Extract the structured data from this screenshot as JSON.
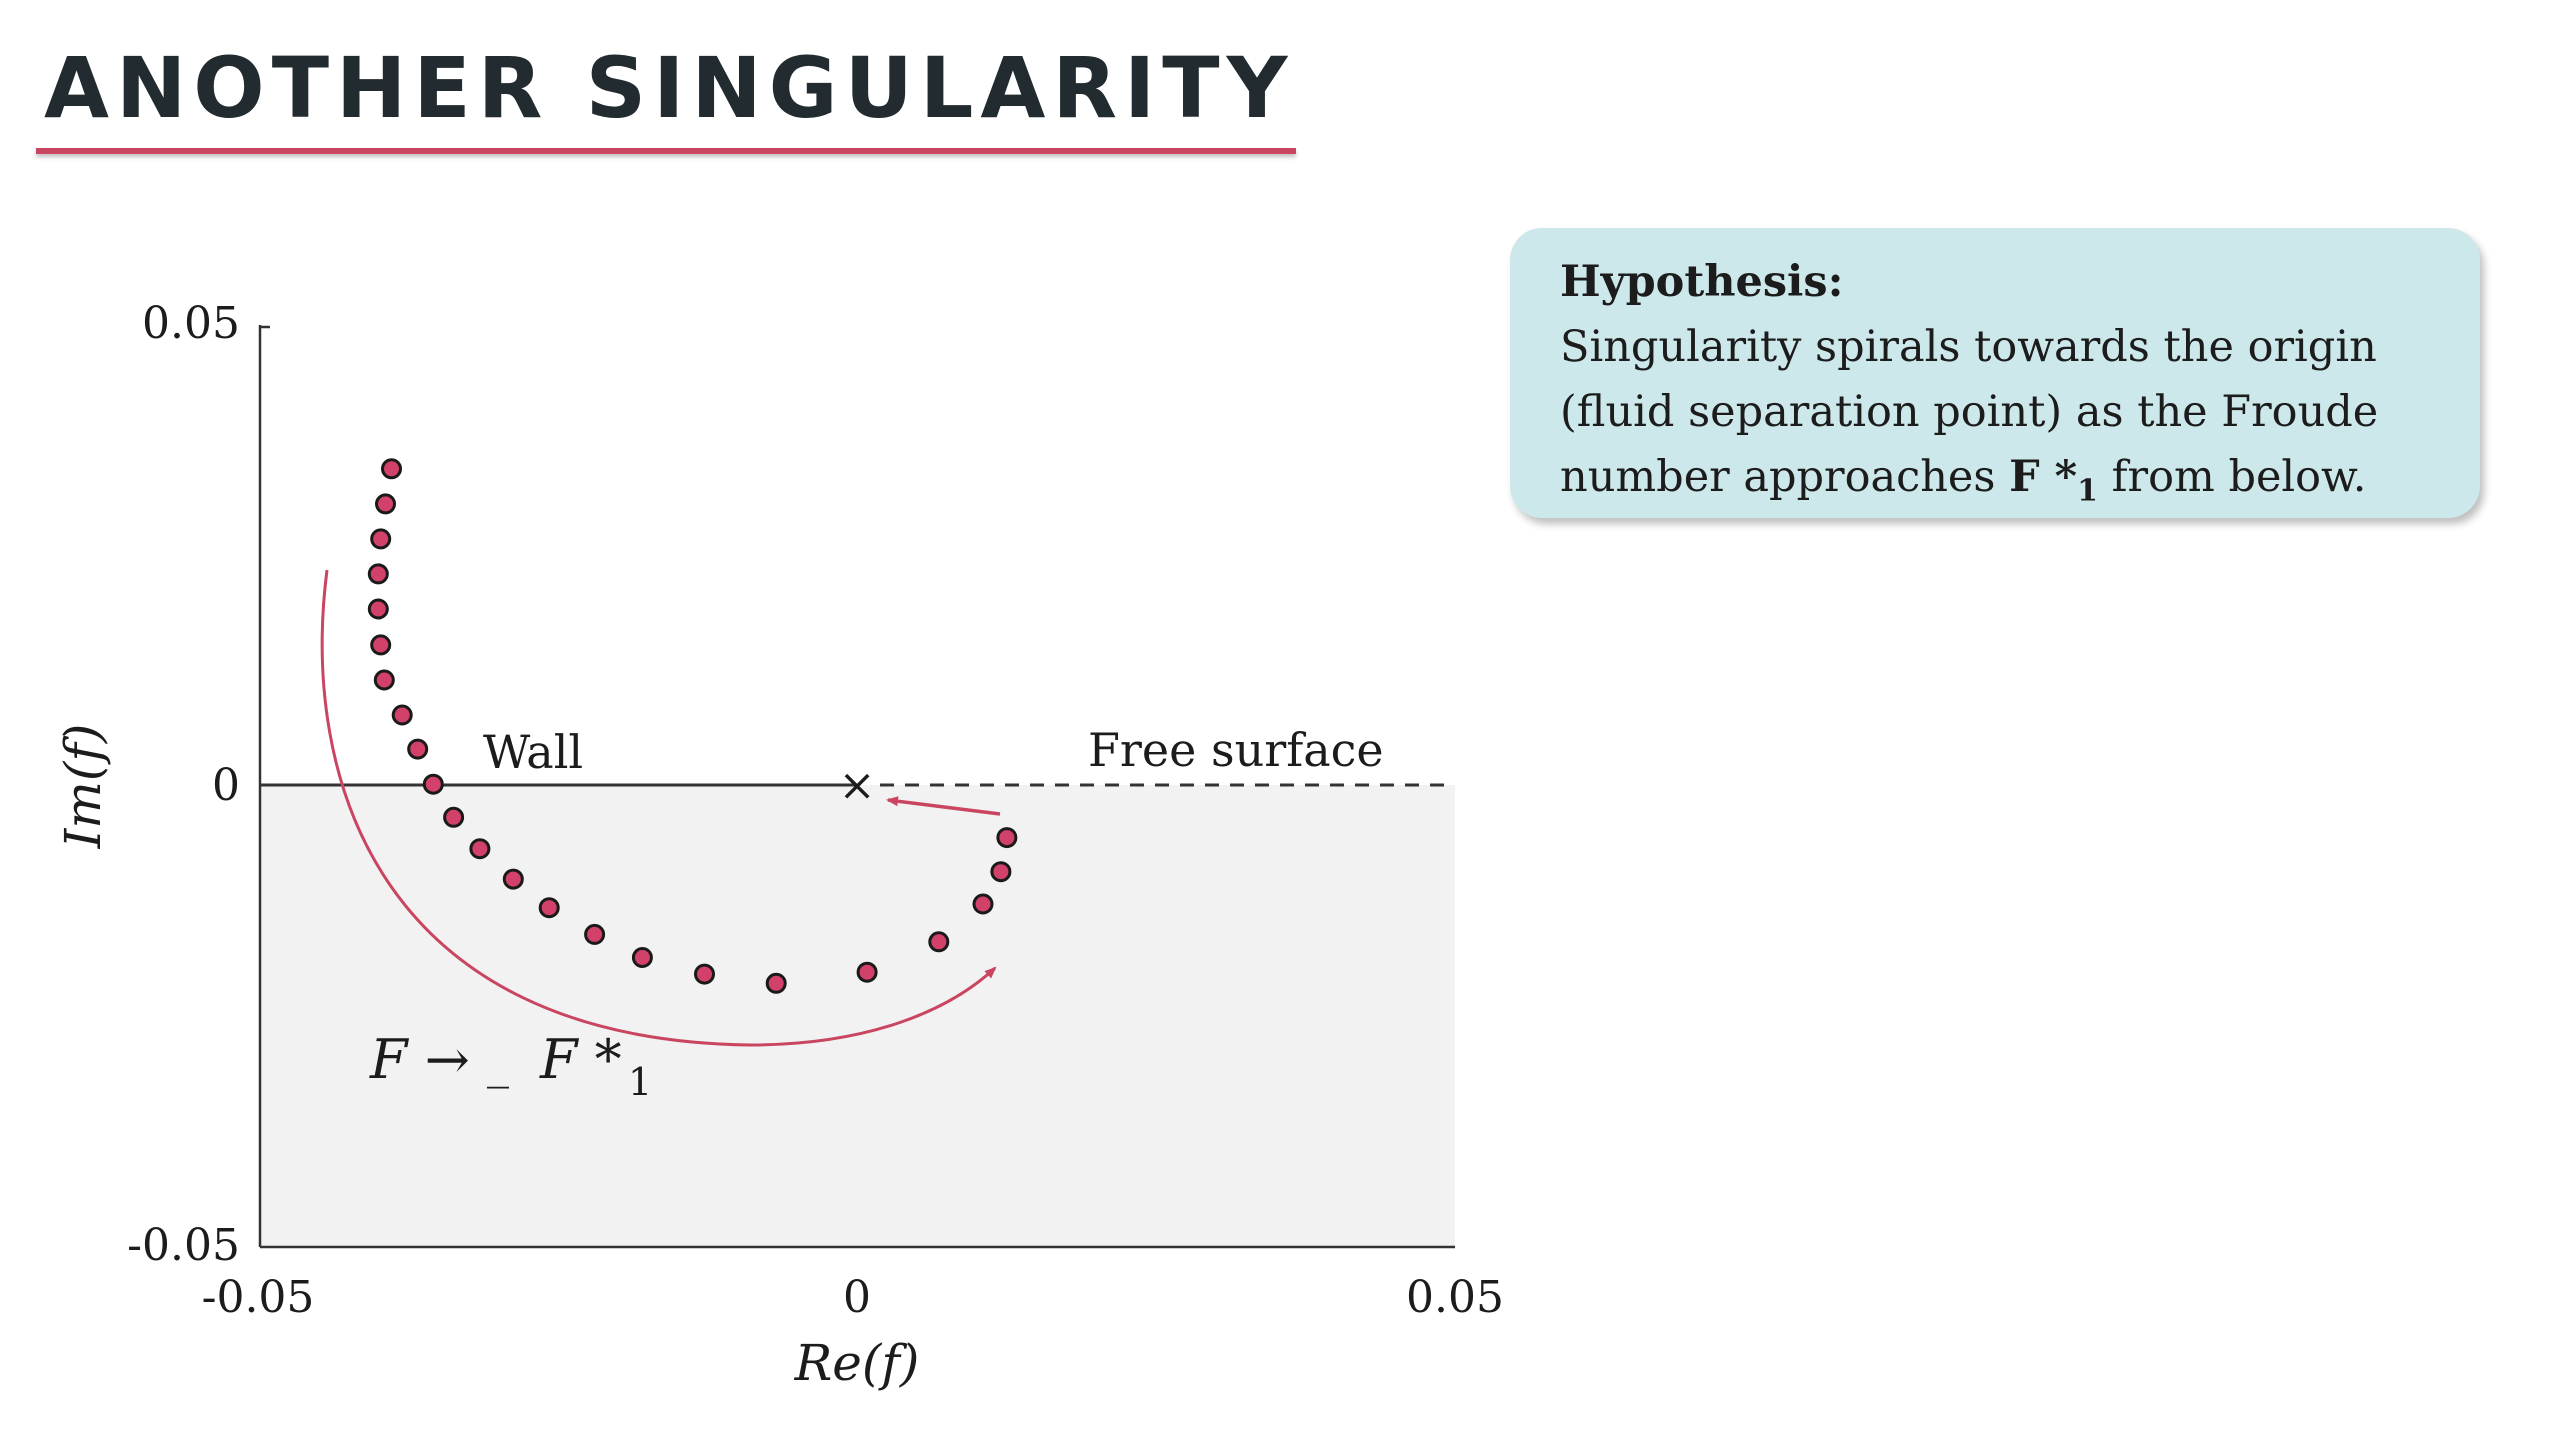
{
  "slide": {
    "title": "ANOTHER SINGULARITY"
  },
  "hypothesis": {
    "heading": "Hypothesis:",
    "line1": "Singularity spirals towards the origin",
    "line2": "(fluid separation point) as the Froude",
    "line3_before": "number approaches ",
    "line3_symbol": "F *",
    "line3_subscript": "1",
    "line3_after": " from below."
  },
  "colors": {
    "accent": "#c94560",
    "marker_fill": "#d1416a",
    "shaded_region": "#f2f2f2",
    "box_background": "#cde8ea"
  },
  "chart_data": {
    "type": "scatter",
    "title": "",
    "xlabel": "Re(f)",
    "ylabel": "Im(f)",
    "xlim": [
      -0.05,
      0.05
    ],
    "ylim": [
      -0.05,
      0.05
    ],
    "xticks": [
      "-0.05",
      "0",
      "0.05"
    ],
    "yticks": [
      "0.05",
      "0",
      "-0.05"
    ],
    "grid": false,
    "series": [
      {
        "x": [
          -0.039,
          -0.0395,
          -0.0399,
          -0.0401,
          -0.0401,
          -0.0399,
          -0.0396,
          -0.0381,
          -0.0368,
          -0.0355,
          -0.0338,
          -0.0316,
          -0.0288,
          -0.0258,
          -0.022,
          -0.018,
          -0.0128,
          -0.0068,
          0.0008,
          0.0068,
          0.0105,
          0.012,
          0.0125
        ],
        "y": [
          0.0344,
          0.0306,
          0.0268,
          0.023,
          0.0192,
          0.0153,
          0.0115,
          0.0077,
          0.004,
          0.0002,
          -0.0034,
          -0.0068,
          -0.0101,
          -0.0132,
          -0.0161,
          -0.0186,
          -0.0204,
          -0.0214,
          -0.0202,
          -0.0169,
          -0.0128,
          -0.0093,
          -0.0056
        ]
      }
    ],
    "annotations": {
      "wall_label": "Wall",
      "free_surface_label": "Free surface",
      "limit_label_F": "F →",
      "limit_label_minus": "_",
      "limit_label_Fstar": "F *",
      "limit_label_sub": "1",
      "origin_marker": "×"
    }
  }
}
